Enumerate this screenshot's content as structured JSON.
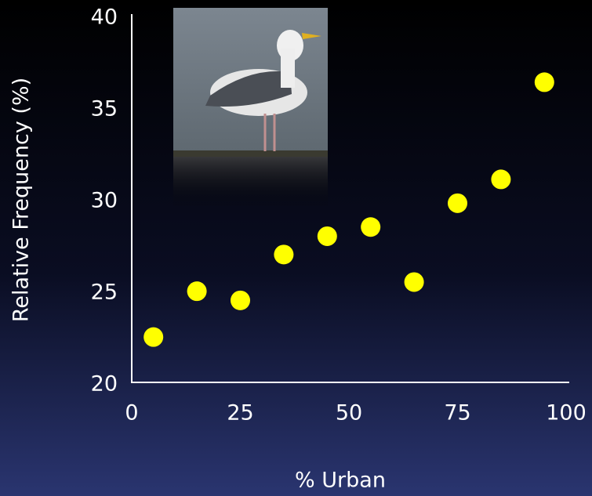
{
  "chart_data": {
    "type": "scatter",
    "x_label": "% Urban",
    "y_label": "Relative Frequency (%)",
    "x": [
      5,
      15,
      25,
      35,
      45,
      55,
      65,
      75,
      85,
      95
    ],
    "values": [
      22.6,
      25.1,
      24.6,
      27.1,
      28.1,
      28.6,
      25.6,
      29.9,
      31.2,
      36.5
    ],
    "color": "#ffff00",
    "xlim": [
      0,
      100
    ],
    "xticks": [
      0,
      25,
      50,
      75,
      100
    ],
    "ylim": [
      20,
      40
    ],
    "yticks": [
      20,
      25,
      30,
      35,
      40
    ],
    "grid": false
  }
}
